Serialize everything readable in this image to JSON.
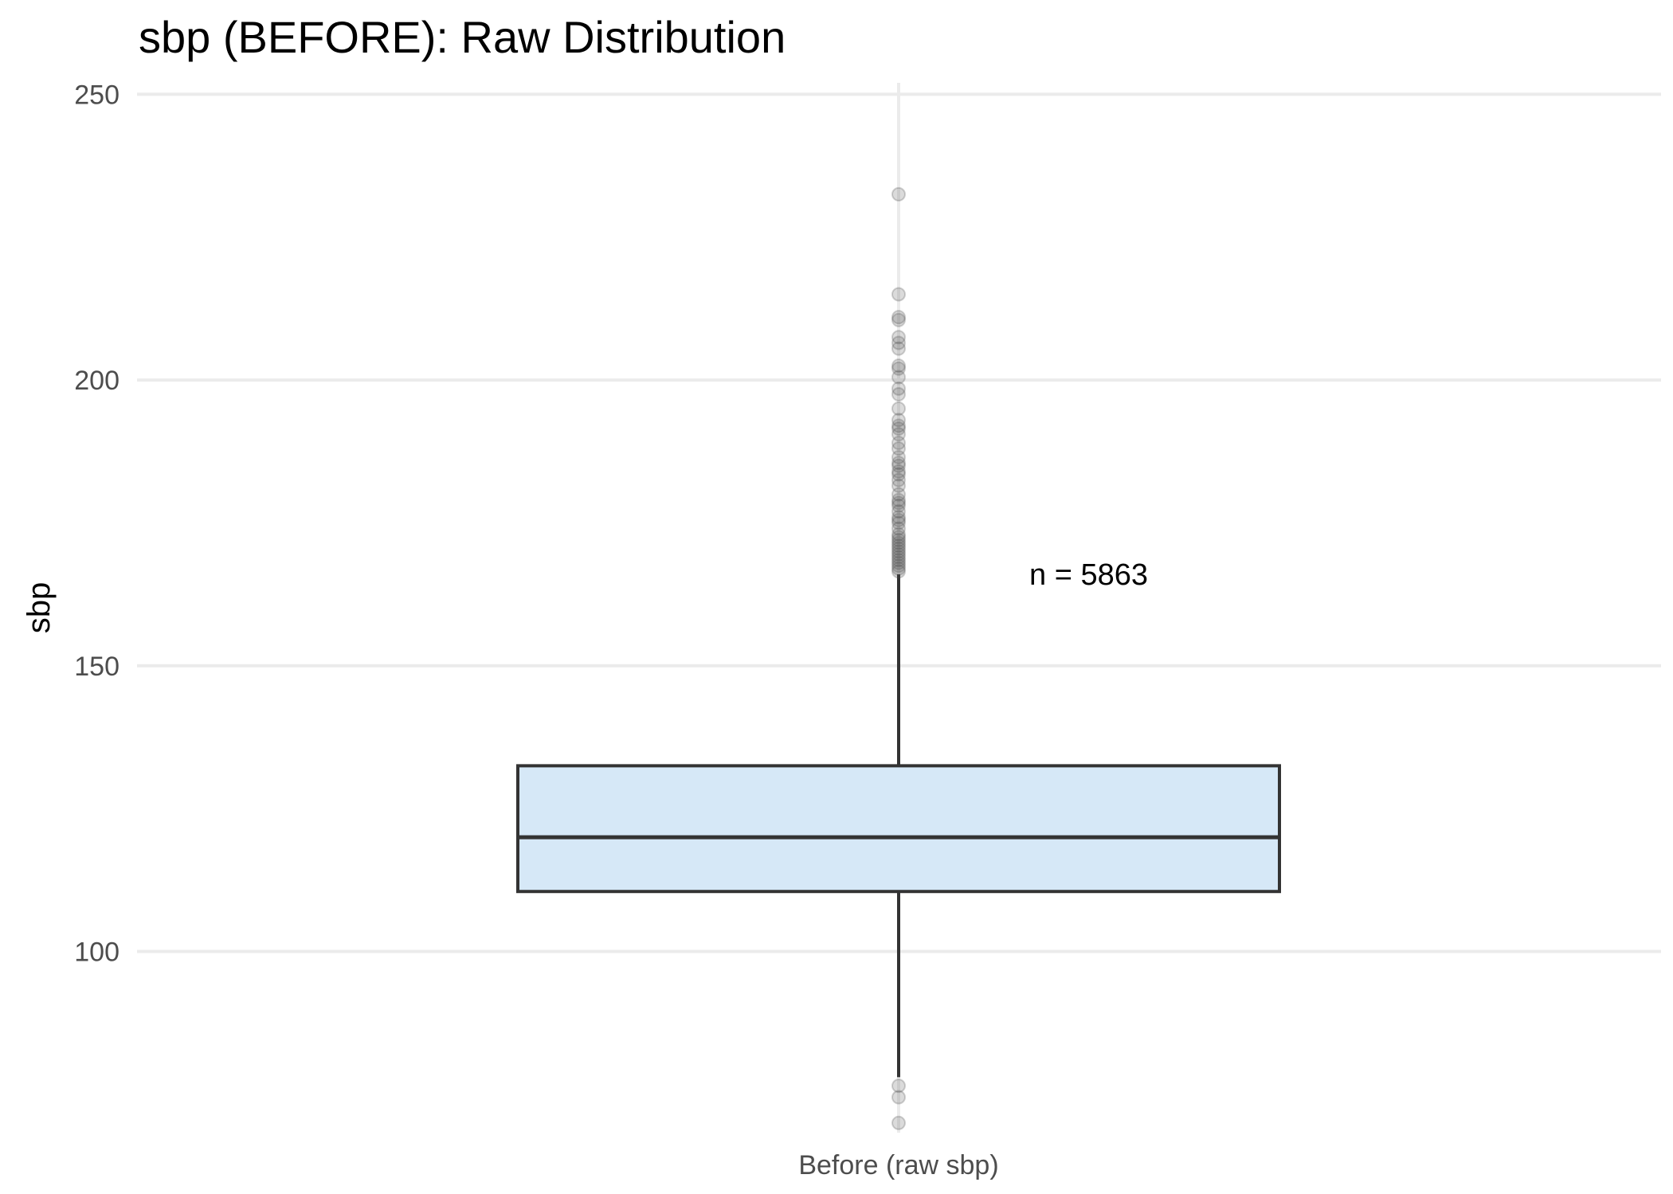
{
  "chart_data": {
    "type": "box",
    "title": "sbp (BEFORE): Raw Distribution",
    "xlabel": "",
    "ylabel": "sbp",
    "ylim": [
      68.3,
      252
    ],
    "yticks": [
      100,
      150,
      200,
      250
    ],
    "grid": true,
    "categories": [
      "Before (raw sbp)"
    ],
    "box": {
      "category": "Before (raw sbp)",
      "q1": 110.5,
      "median": 120,
      "q3": 132.5,
      "whisker_low": 78,
      "whisker_high": 166,
      "outliers": [
        232.5,
        215,
        211,
        210.5,
        207.5,
        206.5,
        205.5,
        202.5,
        202,
        200.5,
        198.5,
        197.5,
        195,
        193,
        192,
        191.5,
        190.5,
        189,
        188,
        186.5,
        185.5,
        185,
        184,
        183.5,
        182.5,
        181.5,
        180,
        179,
        178.5,
        178,
        177,
        176,
        175.5,
        175,
        174,
        173,
        172.5,
        172,
        171.5,
        171,
        170.5,
        170,
        169.5,
        169,
        168.5,
        168,
        167.5,
        167,
        166.5,
        76.5,
        74.5,
        70
      ]
    },
    "annotations": [
      {
        "text": "n = 5863",
        "x": "Before (raw sbp)",
        "y": 166
      }
    ],
    "colors": {
      "box_fill": "#d6e8f7",
      "box_stroke": "#333333",
      "grid": "#ebebeb",
      "outlier": "#4d4d4d"
    }
  }
}
